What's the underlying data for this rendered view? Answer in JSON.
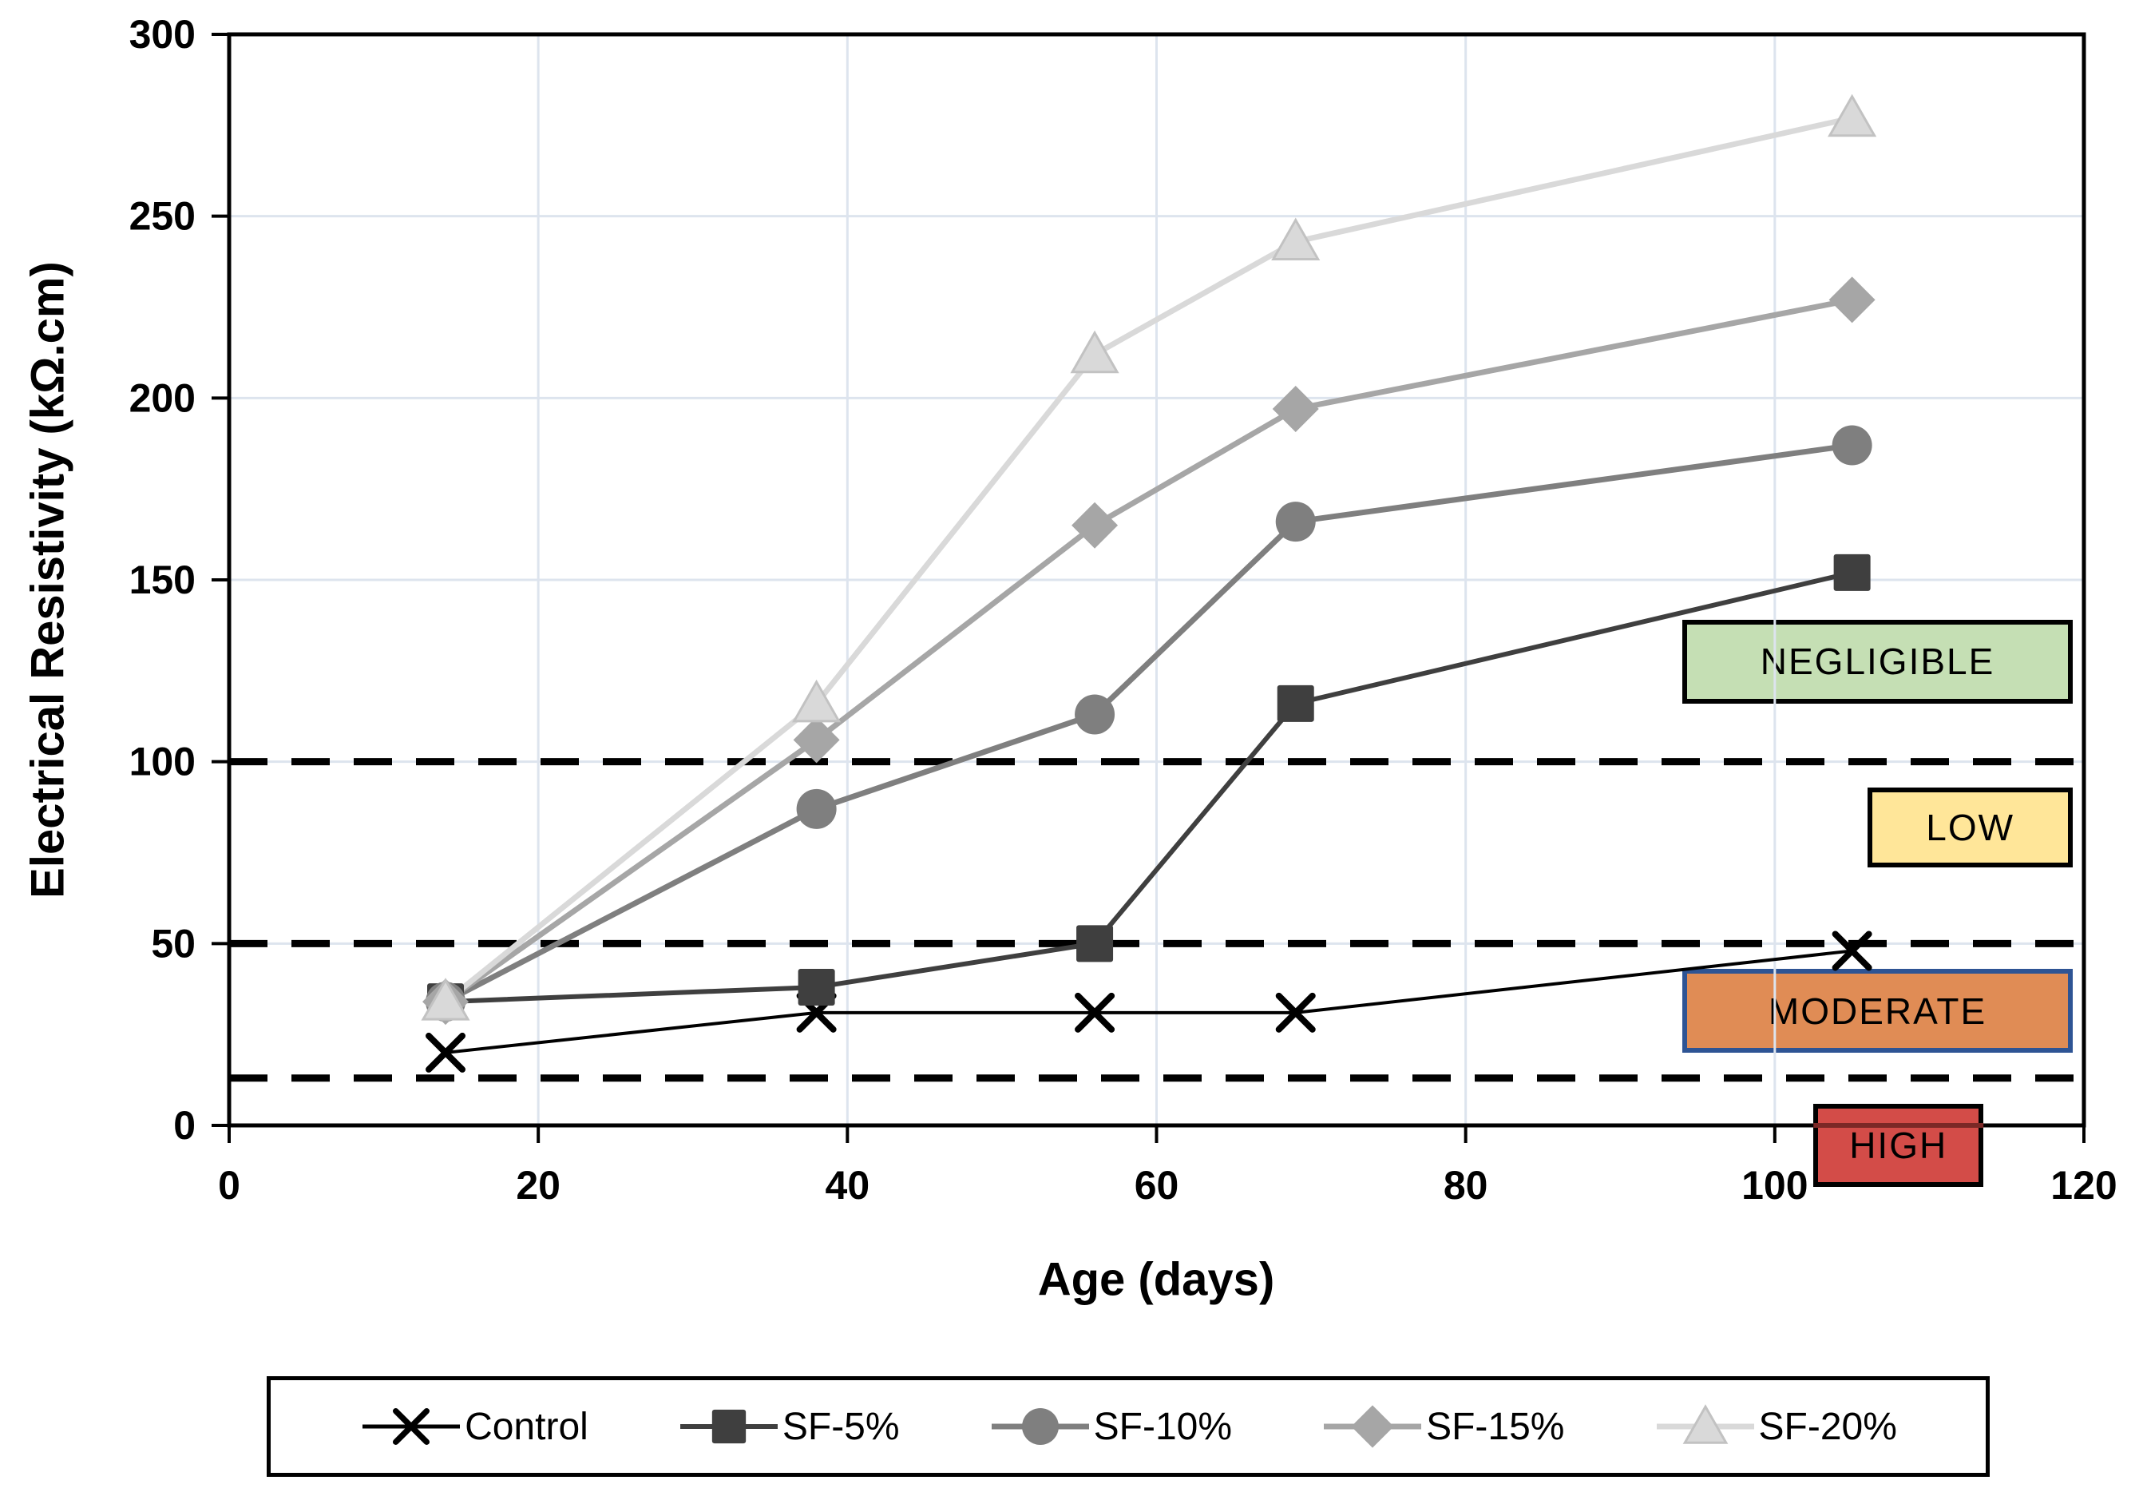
{
  "figure": {
    "background": "#ffffff",
    "plot_border_color": "#000000",
    "grid_color": "#dde4ee"
  },
  "chart_data": {
    "type": "line",
    "title": "",
    "xlabel": "Age (days)",
    "ylabel": "Electrical Resistivity (kΩ.cm)",
    "xlim": [
      0,
      120
    ],
    "ylim": [
      0,
      300
    ],
    "x_ticks": [
      0,
      20,
      40,
      60,
      80,
      100,
      120
    ],
    "y_ticks": [
      0,
      50,
      100,
      150,
      200,
      250,
      300
    ],
    "grid": true,
    "legend_position": "bottom",
    "x": [
      14,
      38,
      56,
      69,
      105
    ],
    "series": [
      {
        "name": "Control",
        "marker": "x",
        "color": "#000000",
        "line_width": 4,
        "values": [
          20,
          31,
          31,
          31,
          48
        ]
      },
      {
        "name": "SF-5%",
        "marker": "square",
        "color": "#3f3f3f",
        "line_width": 6,
        "values": [
          34,
          38,
          50,
          116,
          152
        ]
      },
      {
        "name": "SF-10%",
        "marker": "circle",
        "color": "#7f7f7f",
        "line_width": 7,
        "values": [
          34,
          87,
          113,
          166,
          187
        ]
      },
      {
        "name": "SF-15%",
        "marker": "diamond",
        "color": "#a6a6a6",
        "line_width": 7,
        "values": [
          34,
          106,
          165,
          197,
          227
        ]
      },
      {
        "name": "SF-20%",
        "marker": "triangle",
        "color": "#d9d9d9",
        "line_width": 7,
        "values": [
          34,
          116,
          212,
          243,
          277
        ]
      }
    ],
    "threshold_lines": [
      {
        "value": 100,
        "style": "dashed",
        "color": "#000000"
      },
      {
        "value": 50,
        "style": "dashed",
        "color": "#000000"
      },
      {
        "value": 13,
        "style": "dashed",
        "color": "#000000"
      }
    ],
    "zones": [
      {
        "label": "NEGLIGIBLE",
        "fill": "#c5dfb4",
        "border": "#000000",
        "border_width": 6,
        "x_range": [
          94,
          119.3
        ],
        "y_range": [
          116,
          139
        ]
      },
      {
        "label": "LOW",
        "fill": "#ffe699",
        "border": "#000000",
        "border_width": 6,
        "x_range": [
          106,
          119.3
        ],
        "y_range": [
          71,
          93
        ]
      },
      {
        "label": "MODERATE",
        "fill": "#e08c55",
        "border": "#2e5494",
        "border_width": 6,
        "x_range": [
          94,
          119.3
        ],
        "y_range": [
          20,
          43
        ]
      },
      {
        "label": "HIGH",
        "fill": "#d34c48",
        "border": "#000000",
        "border_width": 6,
        "x_range": [
          102.5,
          113.5
        ],
        "y_range": [
          -17,
          6
        ]
      }
    ]
  }
}
